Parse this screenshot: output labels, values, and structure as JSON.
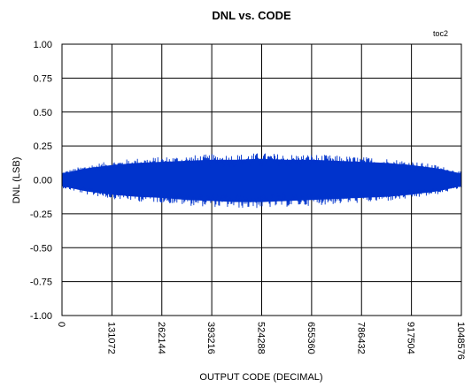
{
  "chart_data": {
    "type": "area",
    "title": "DNL vs. CODE",
    "annotation": "toc2",
    "xlabel": "OUTPUT CODE (DECIMAL)",
    "ylabel": "DNL (LSB)",
    "xlim": [
      0,
      1048576
    ],
    "ylim": [
      -1.0,
      1.0
    ],
    "x_ticks": [
      0,
      131072,
      262144,
      393216,
      524288,
      655360,
      786432,
      917504,
      1048576
    ],
    "x_tick_labels": [
      "0",
      "131072",
      "262144",
      "393216",
      "524288",
      "655360",
      "786432",
      "917504",
      "1048576"
    ],
    "y_ticks": [
      1.0,
      0.75,
      0.5,
      0.25,
      0.0,
      -0.25,
      -0.5,
      -0.75,
      -1.0
    ],
    "y_tick_labels": [
      "1.00",
      "0.75",
      "0.50",
      "0.25",
      "0.00",
      "-0.25",
      "-0.50",
      "-0.75",
      "-1.00"
    ],
    "grid": true,
    "series": [
      {
        "color": "#0033cc",
        "x": [
          0,
          65536,
          131072,
          196608,
          262144,
          327680,
          393216,
          458752,
          524288,
          589824,
          655360,
          720896,
          786432,
          851968,
          917504,
          983040,
          1048576
        ],
        "upper": [
          0.06,
          0.11,
          0.14,
          0.16,
          0.17,
          0.18,
          0.19,
          0.19,
          0.2,
          0.19,
          0.19,
          0.18,
          0.17,
          0.16,
          0.14,
          0.11,
          0.06
        ],
        "lower": [
          -0.06,
          -0.11,
          -0.14,
          -0.16,
          -0.17,
          -0.19,
          -0.2,
          -0.21,
          -0.21,
          -0.2,
          -0.19,
          -0.18,
          -0.17,
          -0.16,
          -0.14,
          -0.11,
          -0.06
        ]
      }
    ]
  }
}
